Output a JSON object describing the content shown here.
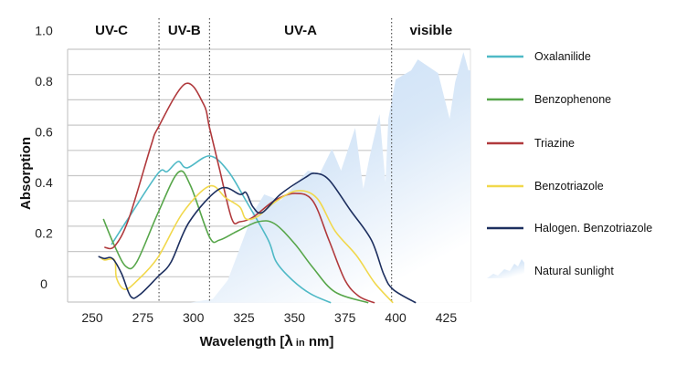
{
  "chart_data": {
    "type": "line",
    "xlabel_parts": [
      "Wavelength [",
      "λ",
      " in",
      " nm]"
    ],
    "ylabel": "Absorption",
    "xlim": [
      237.8,
      437
    ],
    "ylim": [
      -0.075,
      1.0
    ],
    "x_ticks": [
      250,
      275,
      300,
      325,
      350,
      375,
      400,
      425
    ],
    "y_ticks": [
      {
        "value": 1.0,
        "label": "1.0"
      },
      {
        "value": 0.8,
        "label": "0.8"
      },
      {
        "value": 0.6,
        "label": "0.6"
      },
      {
        "value": 0.4,
        "label": "0.4"
      },
      {
        "value": 0.2,
        "label": "0.2"
      },
      {
        "value": 0,
        "label": "0"
      }
    ],
    "grid": true,
    "regions": [
      {
        "label": "UV-C",
        "from": 237.8,
        "to": 283
      },
      {
        "label": "UV-B",
        "from": 283,
        "to": 308
      },
      {
        "label": "UV-A",
        "from": 308,
        "to": 398
      },
      {
        "label": "visible",
        "from": 398,
        "to": 437
      }
    ],
    "region_boundaries": [
      283,
      308,
      398
    ],
    "legend_position": "right",
    "series": [
      {
        "name": "Oxalanilide",
        "color": "#4fb9c6",
        "points": [
          [
            259.5,
            0.155
          ],
          [
            267.6,
            0.256
          ],
          [
            282.5,
            0.436
          ],
          [
            287,
            0.443
          ],
          [
            292.5,
            0.483
          ],
          [
            297,
            0.458
          ],
          [
            308,
            0.505
          ],
          [
            317,
            0.447
          ],
          [
            326,
            0.328
          ],
          [
            337,
            0.173
          ],
          [
            341,
            0.086
          ],
          [
            349,
            0.014
          ],
          [
            358,
            -0.04
          ],
          [
            368,
            -0.075
          ]
        ]
      },
      {
        "name": "Benzophenone",
        "color": "#57a64a",
        "points": [
          [
            255.5,
            0.256
          ],
          [
            261,
            0.15
          ],
          [
            266.7,
            0.068
          ],
          [
            272,
            0.086
          ],
          [
            282.5,
            0.28
          ],
          [
            292.5,
            0.44
          ],
          [
            298.5,
            0.389
          ],
          [
            308,
            0.184
          ],
          [
            313,
            0.173
          ],
          [
            322,
            0.209
          ],
          [
            332,
            0.245
          ],
          [
            340,
            0.238
          ],
          [
            350,
            0.159
          ],
          [
            359,
            0.065
          ],
          [
            370,
            -0.032
          ],
          [
            386.5,
            -0.075
          ]
        ]
      },
      {
        "name": "Triazine",
        "color": "#b0393c",
        "points": [
          [
            256,
            0.144
          ],
          [
            261,
            0.148
          ],
          [
            268,
            0.256
          ],
          [
            279,
            0.544
          ],
          [
            282.5,
            0.616
          ],
          [
            296,
            0.79
          ],
          [
            305,
            0.71
          ],
          [
            308,
            0.616
          ],
          [
            313,
            0.45
          ],
          [
            319,
            0.256
          ],
          [
            323,
            0.245
          ],
          [
            329.5,
            0.263
          ],
          [
            340,
            0.328
          ],
          [
            350,
            0.357
          ],
          [
            359,
            0.328
          ],
          [
            367,
            0.173
          ],
          [
            375,
            0.014
          ],
          [
            382,
            -0.05
          ],
          [
            389.6,
            -0.075
          ]
        ]
      },
      {
        "name": "Benzotriazole",
        "color": "#f1d84c",
        "points": [
          [
            254,
            0.105
          ],
          [
            256,
            0.094
          ],
          [
            261,
            0.094
          ],
          [
            262,
            0.022
          ],
          [
            266,
            -0.022
          ],
          [
            272,
            0.011
          ],
          [
            282.5,
            0.105
          ],
          [
            294.7,
            0.28
          ],
          [
            308,
            0.386
          ],
          [
            316,
            0.339
          ],
          [
            323,
            0.303
          ],
          [
            326,
            0.256
          ],
          [
            332,
            0.267
          ],
          [
            340,
            0.321
          ],
          [
            351,
            0.367
          ],
          [
            361,
            0.339
          ],
          [
            370,
            0.209
          ],
          [
            380.6,
            0.112
          ],
          [
            389.6,
            0.004
          ],
          [
            398.7,
            -0.075
          ]
        ]
      },
      {
        "name": "Halogen. Benzotriazole",
        "color": "#1d2f5f",
        "points": [
          [
            253,
            0.108
          ],
          [
            256,
            0.1
          ],
          [
            260,
            0.1
          ],
          [
            264.5,
            0.04
          ],
          [
            269,
            -0.05
          ],
          [
            273.5,
            -0.043
          ],
          [
            282.5,
            0.029
          ],
          [
            289,
            0.086
          ],
          [
            298,
            0.245
          ],
          [
            313,
            0.375
          ],
          [
            323,
            0.353
          ],
          [
            326,
            0.36
          ],
          [
            329.5,
            0.303
          ],
          [
            334,
            0.281
          ],
          [
            343,
            0.353
          ],
          [
            355,
            0.418
          ],
          [
            360,
            0.436
          ],
          [
            367,
            0.411
          ],
          [
            377.5,
            0.292
          ],
          [
            388,
            0.173
          ],
          [
            394,
            0.04
          ],
          [
            398.7,
            -0.022
          ],
          [
            410,
            -0.075
          ]
        ]
      }
    ],
    "area": {
      "name": "Natural sunlight",
      "color": "#cfe3f7",
      "points": [
        [
          298,
          -0.075
        ],
        [
          309.6,
          -0.06
        ],
        [
          317,
          0.014
        ],
        [
          322,
          0.12
        ],
        [
          329.5,
          0.28
        ],
        [
          335,
          0.353
        ],
        [
          343,
          0.328
        ],
        [
          350,
          0.389
        ],
        [
          356.6,
          0.447
        ],
        [
          362.5,
          0.436
        ],
        [
          368.5,
          0.533
        ],
        [
          373,
          0.447
        ],
        [
          380,
          0.616
        ],
        [
          384,
          0.375
        ],
        [
          387,
          0.497
        ],
        [
          392,
          0.67
        ],
        [
          395,
          0.4
        ],
        [
          396.4,
          0.652
        ],
        [
          400,
          0.807
        ],
        [
          407.7,
          0.843
        ],
        [
          411,
          0.886
        ],
        [
          421,
          0.832
        ],
        [
          426.7,
          0.652
        ],
        [
          429.4,
          0.796
        ],
        [
          433.5,
          0.915
        ],
        [
          436,
          0.843
        ],
        [
          437,
          0.843
        ],
        [
          437,
          -0.075
        ]
      ]
    }
  }
}
